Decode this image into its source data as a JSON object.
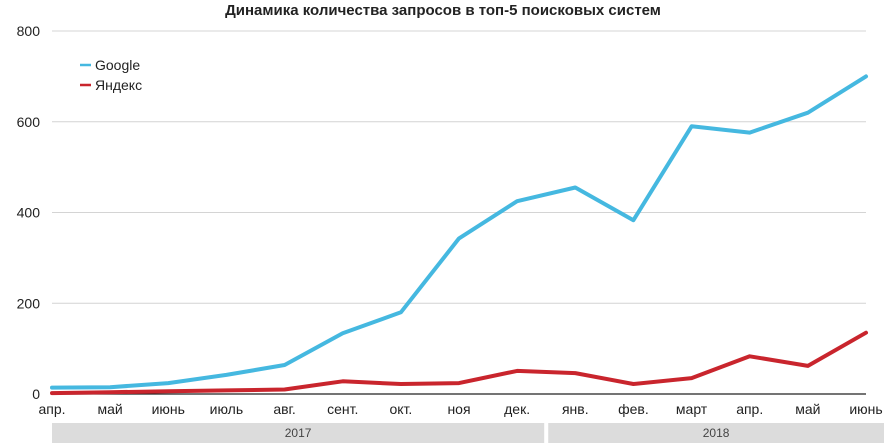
{
  "chart_data": {
    "type": "line",
    "title": "Динамика количества запросов в топ-5 поисковых систем",
    "xlabel": "",
    "ylabel": "",
    "categories": [
      "апр.",
      "май",
      "июнь",
      "июль",
      "авг.",
      "сент.",
      "окт.",
      "ноя",
      "дек.",
      "янв.",
      "фев.",
      "март",
      "апр.",
      "май",
      "июнь"
    ],
    "year_groups": [
      {
        "label": "2017",
        "from": 0,
        "to": 8
      },
      {
        "label": "2018",
        "from": 9,
        "to": 14
      }
    ],
    "ylim": [
      0,
      800
    ],
    "yticks": [
      0,
      200,
      400,
      600,
      800
    ],
    "grid": true,
    "legend": "top-left",
    "series": [
      {
        "name": "Google",
        "color": "#45b8e0",
        "values": [
          14,
          15,
          24,
          42,
          64,
          134,
          180,
          343,
          425,
          455,
          383,
          590,
          576,
          620,
          700
        ]
      },
      {
        "name": "Яндекс",
        "color": "#c9252d",
        "values": [
          2,
          4,
          6,
          8,
          10,
          28,
          22,
          24,
          51,
          46,
          22,
          35,
          83,
          62,
          135
        ]
      }
    ]
  }
}
